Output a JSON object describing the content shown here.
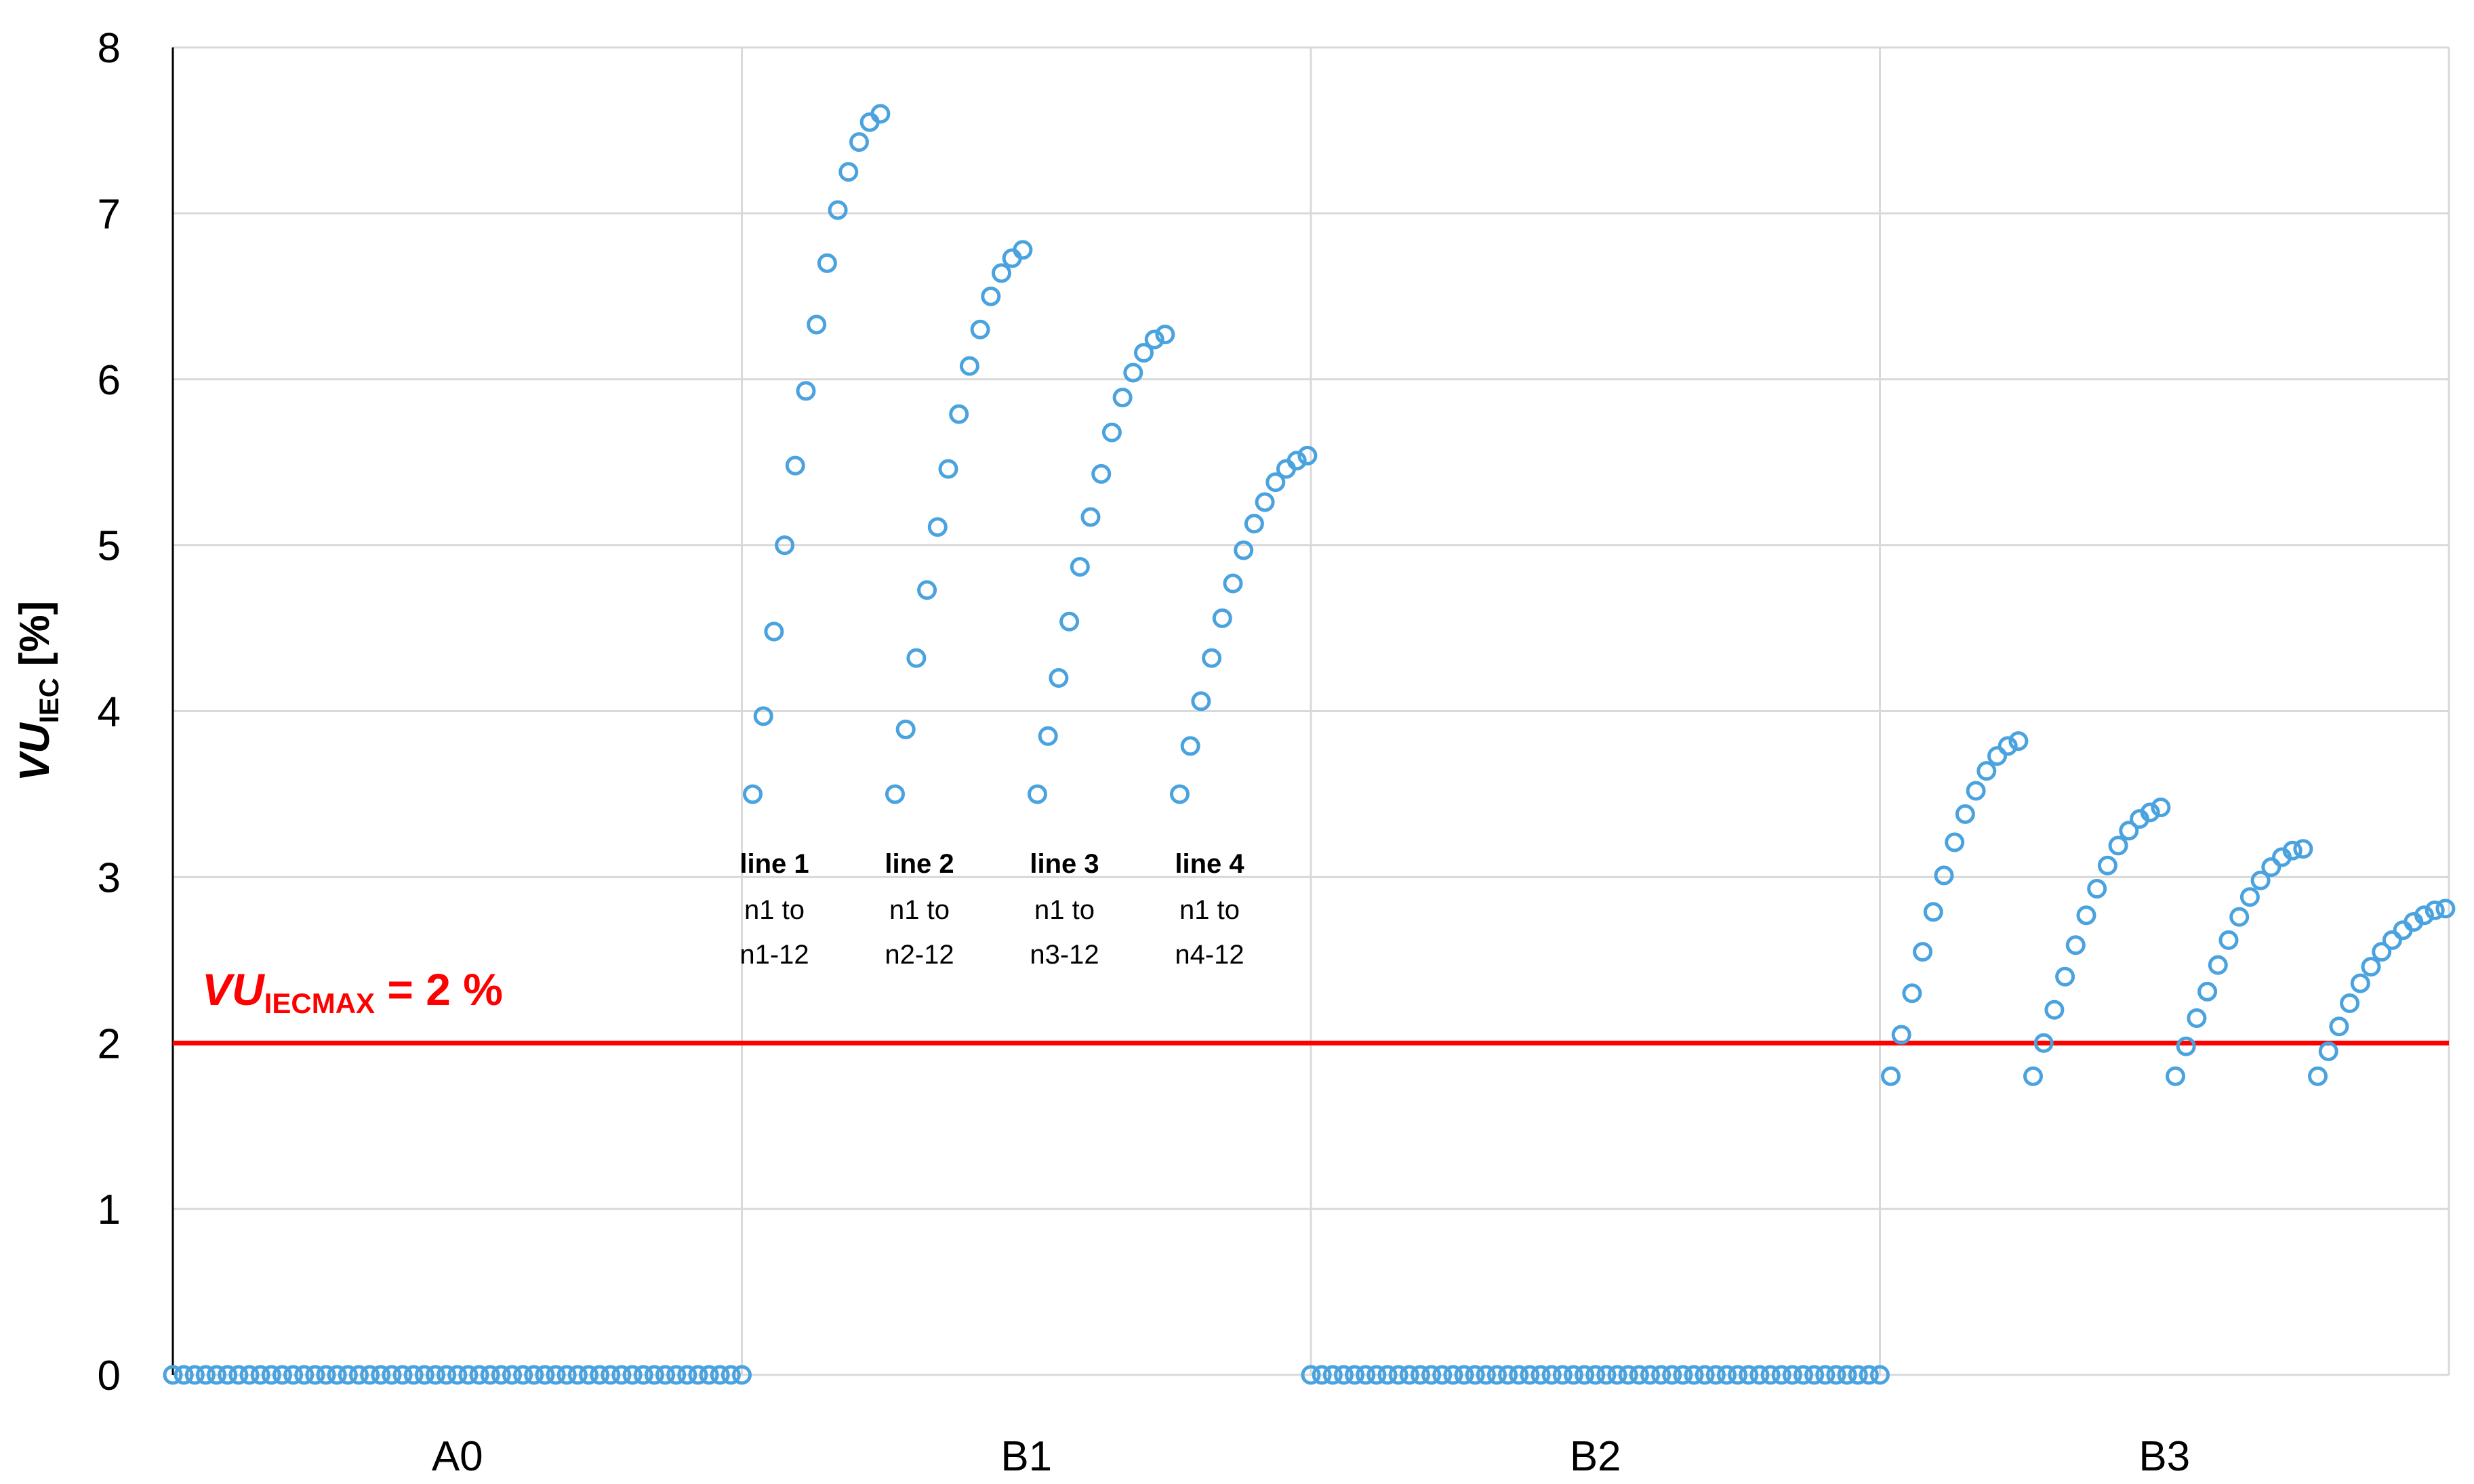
{
  "chart_data": {
    "type": "scatter",
    "ylabel": {
      "main": "VU",
      "sub": "IEC",
      "unit": " [%]"
    },
    "ylim": [
      0,
      8
    ],
    "y_ticks": [
      "0",
      "1",
      "2",
      "3",
      "4",
      "5",
      "6",
      "7",
      "8"
    ],
    "categories": [
      "A0",
      "B1",
      "B2",
      "B3"
    ],
    "grid": true,
    "marker_color": "#4aa3df",
    "limit_color": "#ff0000",
    "limit": {
      "value": 2,
      "label_main": "VU",
      "label_sub": "IECMAX",
      "label_rest": " = 2 %"
    },
    "annotations": [
      {
        "line": "line 1",
        "row2": "n1 to",
        "row3": "n1-12"
      },
      {
        "line": "line 2",
        "row2": "n1 to",
        "row3": "n2-12"
      },
      {
        "line": "line 3",
        "row2": "n1 to",
        "row3": "n3-12"
      },
      {
        "line": "line 4",
        "row2": "n1 to",
        "row3": "n4-12"
      }
    ],
    "groups": [
      {
        "category": "A0",
        "curves": [
          [
            0,
            0,
            0,
            0,
            0,
            0,
            0,
            0,
            0,
            0,
            0,
            0,
            0,
            0,
            0,
            0,
            0,
            0,
            0,
            0,
            0,
            0,
            0,
            0,
            0,
            0,
            0,
            0,
            0,
            0,
            0,
            0,
            0,
            0,
            0,
            0,
            0,
            0,
            0,
            0,
            0,
            0,
            0,
            0,
            0,
            0,
            0,
            0,
            0,
            0,
            0,
            0,
            0
          ]
        ]
      },
      {
        "category": "B1",
        "curves": [
          [
            3.5,
            3.97,
            4.48,
            5.0,
            5.48,
            5.93,
            6.33,
            6.7,
            7.02,
            7.25,
            7.43,
            7.55,
            7.6
          ],
          [
            3.5,
            3.89,
            4.32,
            4.73,
            5.11,
            5.46,
            5.79,
            6.08,
            6.3,
            6.5,
            6.64,
            6.73,
            6.78
          ],
          [
            3.5,
            3.85,
            4.2,
            4.54,
            4.87,
            5.17,
            5.43,
            5.68,
            5.89,
            6.04,
            6.16,
            6.24,
            6.27
          ],
          [
            3.5,
            3.79,
            4.06,
            4.32,
            4.56,
            4.77,
            4.97,
            5.13,
            5.26,
            5.38,
            5.46,
            5.51,
            5.54
          ]
        ]
      },
      {
        "category": "B2",
        "curves": [
          [
            0,
            0,
            0,
            0,
            0,
            0,
            0,
            0,
            0,
            0,
            0,
            0,
            0,
            0,
            0,
            0,
            0,
            0,
            0,
            0,
            0,
            0,
            0,
            0,
            0,
            0,
            0,
            0,
            0,
            0,
            0,
            0,
            0,
            0,
            0,
            0,
            0,
            0,
            0,
            0,
            0,
            0,
            0,
            0,
            0,
            0,
            0,
            0,
            0,
            0,
            0,
            0,
            0
          ]
        ]
      },
      {
        "category": "B3",
        "curves": [
          [
            1.8,
            2.05,
            2.3,
            2.55,
            2.79,
            3.01,
            3.21,
            3.38,
            3.52,
            3.64,
            3.73,
            3.79,
            3.82
          ],
          [
            1.8,
            2.0,
            2.2,
            2.4,
            2.59,
            2.77,
            2.93,
            3.07,
            3.19,
            3.28,
            3.35,
            3.39,
            3.42
          ],
          [
            1.8,
            1.98,
            2.15,
            2.31,
            2.47,
            2.62,
            2.76,
            2.88,
            2.98,
            3.06,
            3.12,
            3.16,
            3.17
          ],
          [
            1.8,
            1.95,
            2.1,
            2.24,
            2.36,
            2.46,
            2.55,
            2.62,
            2.68,
            2.73,
            2.77,
            2.8,
            2.81
          ]
        ]
      }
    ]
  }
}
